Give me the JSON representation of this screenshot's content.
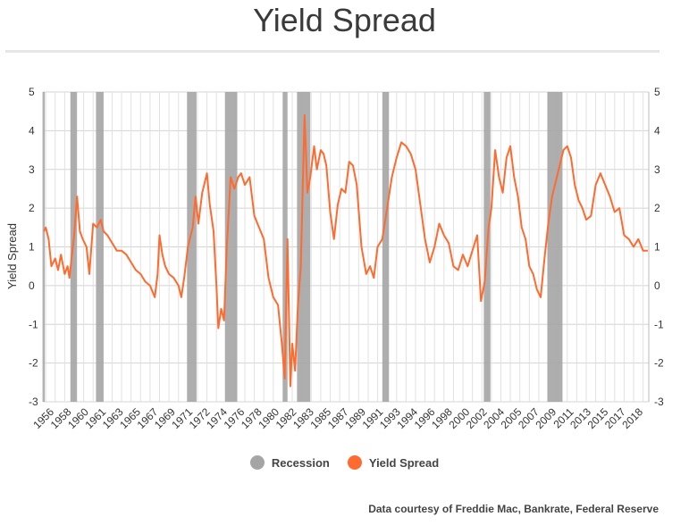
{
  "chart_data": {
    "type": "line",
    "title": "Yield Spread",
    "ylabel": "Yield Spread",
    "xlabel": "",
    "xlim": [
      1954.7,
      2018.6
    ],
    "ylim": [
      -3,
      5
    ],
    "y_ticks": [
      "5",
      "4",
      "3",
      "2",
      "1",
      "0",
      "-1",
      "-2",
      "-3"
    ],
    "x_ticks": [
      "1956",
      "1958",
      "1960",
      "1961",
      "1963",
      "1965",
      "1967",
      "1969",
      "1971",
      "1972",
      "1974",
      "1976",
      "1978",
      "1980",
      "1982",
      "1983",
      "1985",
      "1987",
      "1989",
      "1991",
      "1993",
      "1994",
      "1996",
      "1998",
      "2000",
      "2002",
      "2004",
      "2005",
      "2007",
      "2009",
      "2011",
      "2013",
      "2015",
      "2017",
      "2018"
    ],
    "grid": true,
    "legend_position": "bottom",
    "series": [
      {
        "name": "Yield Spread",
        "color": "#ff6a2f",
        "x": [
          1954.8,
          1955.0,
          1955.3,
          1955.6,
          1956.0,
          1956.3,
          1956.6,
          1957.0,
          1957.3,
          1957.5,
          1958.0,
          1958.3,
          1958.6,
          1958.9,
          1959.3,
          1959.6,
          1960.0,
          1960.4,
          1960.8,
          1961.1,
          1961.5,
          1962.0,
          1962.5,
          1963.0,
          1963.5,
          1964.0,
          1964.5,
          1965.0,
          1965.5,
          1966.0,
          1966.5,
          1966.8,
          1967.0,
          1967.3,
          1967.6,
          1968.0,
          1968.5,
          1969.0,
          1969.3,
          1969.6,
          1970.0,
          1970.5,
          1970.8,
          1971.1,
          1971.5,
          1972.0,
          1972.3,
          1972.7,
          1973.0,
          1973.2,
          1973.5,
          1973.8,
          1974.1,
          1974.5,
          1974.9,
          1975.3,
          1975.6,
          1976.0,
          1976.5,
          1977.0,
          1977.5,
          1978.0,
          1978.5,
          1979.0,
          1979.5,
          1979.9,
          1980.2,
          1980.5,
          1980.8,
          1981.0,
          1981.3,
          1981.6,
          1981.9,
          1982.3,
          1982.6,
          1982.9,
          1983.3,
          1983.6,
          1984.0,
          1984.3,
          1984.6,
          1985.0,
          1985.4,
          1985.8,
          1986.2,
          1986.6,
          1987.0,
          1987.4,
          1987.8,
          1988.3,
          1988.8,
          1989.2,
          1989.6,
          1990.0,
          1990.5,
          1991.0,
          1991.5,
          1992.0,
          1992.5,
          1993.0,
          1993.5,
          1994.0,
          1994.5,
          1995.0,
          1995.5,
          1996.0,
          1996.5,
          1997.0,
          1997.5,
          1998.0,
          1998.5,
          1999.0,
          1999.5,
          2000.0,
          2000.5,
          2000.9,
          2001.3,
          2001.7,
          2002.0,
          2002.4,
          2002.8,
          2003.2,
          2003.6,
          2004.0,
          2004.4,
          2004.8,
          2005.2,
          2005.6,
          2006.0,
          2006.4,
          2006.8,
          2007.2,
          2007.6,
          2008.0,
          2008.4,
          2008.8,
          2009.2,
          2009.6,
          2010.0,
          2010.4,
          2010.8,
          2011.2,
          2011.6,
          2012.0,
          2012.5,
          2013.0,
          2013.5,
          2014.0,
          2014.5,
          2015.0,
          2015.5,
          2016.0,
          2016.5,
          2017.0,
          2017.5,
          2018.0,
          2018.5
        ],
        "y": [
          1.4,
          1.5,
          1.2,
          0.5,
          0.7,
          0.4,
          0.8,
          0.3,
          0.5,
          0.2,
          1.3,
          2.3,
          1.4,
          1.2,
          1.0,
          0.3,
          1.6,
          1.5,
          1.7,
          1.4,
          1.3,
          1.1,
          0.9,
          0.9,
          0.8,
          0.6,
          0.4,
          0.3,
          0.1,
          0.0,
          -0.3,
          0.3,
          1.3,
          0.8,
          0.5,
          0.3,
          0.2,
          0.0,
          -0.3,
          0.2,
          1.0,
          1.5,
          2.3,
          1.6,
          2.4,
          2.9,
          2.1,
          1.4,
          0.0,
          -1.1,
          -0.6,
          -0.9,
          1.0,
          2.8,
          2.5,
          2.8,
          2.9,
          2.6,
          2.8,
          1.8,
          1.5,
          1.2,
          0.2,
          -0.3,
          -0.5,
          -1.5,
          -2.4,
          1.2,
          -2.6,
          -1.5,
          -2.2,
          -0.5,
          0.5,
          4.4,
          2.4,
          2.8,
          3.6,
          3.0,
          3.5,
          3.4,
          3.1,
          1.9,
          1.2,
          2.1,
          2.5,
          2.4,
          3.2,
          3.1,
          2.6,
          1.0,
          0.3,
          0.5,
          0.2,
          1.0,
          1.2,
          2.0,
          2.8,
          3.3,
          3.7,
          3.6,
          3.4,
          3.0,
          2.1,
          1.2,
          0.6,
          1.0,
          1.6,
          1.3,
          1.1,
          0.5,
          0.4,
          0.8,
          0.5,
          0.9,
          1.3,
          -0.4,
          0.1,
          1.5,
          2.0,
          3.5,
          2.8,
          2.4,
          3.3,
          3.6,
          2.8,
          2.3,
          1.5,
          1.2,
          0.5,
          0.3,
          -0.1,
          -0.3,
          0.7,
          1.6,
          2.3,
          2.7,
          3.1,
          3.5,
          3.6,
          3.3,
          2.6,
          2.2,
          2.0,
          1.7,
          1.8,
          2.6,
          2.9,
          2.6,
          2.3,
          1.9,
          2.0,
          1.3,
          1.2,
          1.0,
          1.2,
          0.9,
          0.9
        ]
      }
    ],
    "recessions": [
      [
        1954.7,
        1954.9
      ],
      [
        1957.6,
        1958.3
      ],
      [
        1960.3,
        1961.1
      ],
      [
        1969.9,
        1970.9
      ],
      [
        1973.9,
        1975.2
      ],
      [
        1980.0,
        1980.5
      ],
      [
        1981.5,
        1982.9
      ],
      [
        1990.5,
        1991.2
      ],
      [
        2001.2,
        2001.9
      ],
      [
        2007.9,
        2009.5
      ]
    ],
    "legend": [
      {
        "label": "Recession",
        "color": "#a5a5a5"
      },
      {
        "label": "Yield Spread",
        "color": "#ff6a2f"
      }
    ],
    "recession_color": "#a5a5a5",
    "credit": "Data courtesy of Freddie Mac, Bankrate, Federal Reserve"
  }
}
